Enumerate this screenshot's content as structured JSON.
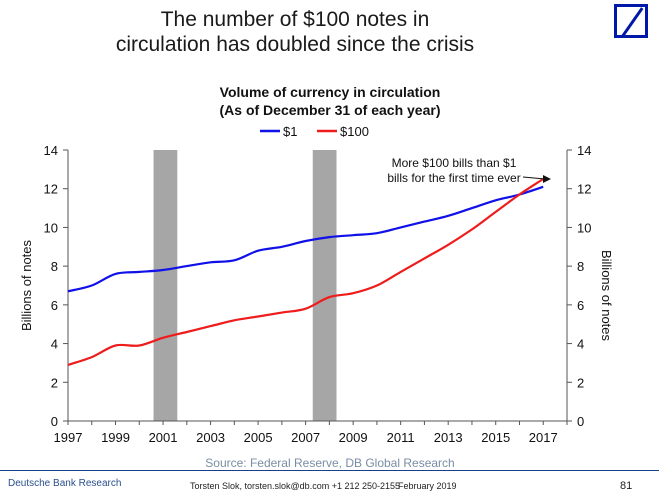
{
  "slide": {
    "headline_line1": "The number of $100 notes in",
    "headline_line2": "circulation has doubled since the crisis",
    "source": "Source: Federal Reserve, DB Global Research",
    "footer_left": "Deutsche Bank Research",
    "footer_contact": "Torsten Slok, torsten.slok@db.com +1 212 250-2155",
    "footer_date": "February 2019",
    "page_number": "81"
  },
  "chart_data": {
    "type": "line",
    "title": "Volume of currency in circulation",
    "subtitle": "(As of December 31 of each year)",
    "ylabel_left": "Billions of notes",
    "ylabel_right": "Billions of notes",
    "ylim": [
      0,
      14
    ],
    "yticks": [
      0,
      2,
      4,
      6,
      8,
      10,
      12,
      14
    ],
    "xlim": [
      1997,
      2018
    ],
    "xticks": [
      1997,
      1999,
      2001,
      2003,
      2005,
      2007,
      2009,
      2011,
      2013,
      2015,
      2017
    ],
    "recessions": [
      [
        2000.6,
        2001.6
      ],
      [
        2007.3,
        2008.3
      ]
    ],
    "annotation_line1": "More $100 bills than $1",
    "annotation_line2": "bills for the first time ever",
    "series": [
      {
        "name": "$1",
        "color": "#1010e8",
        "x": [
          1997,
          1998,
          1999,
          2000,
          2001,
          2002,
          2003,
          2004,
          2005,
          2006,
          2007,
          2008,
          2009,
          2010,
          2011,
          2012,
          2013,
          2014,
          2015,
          2016,
          2017
        ],
        "values": [
          6.7,
          7.0,
          7.6,
          7.7,
          7.8,
          8.0,
          8.2,
          8.3,
          8.8,
          9.0,
          9.3,
          9.5,
          9.6,
          9.7,
          10.0,
          10.3,
          10.6,
          11.0,
          11.4,
          11.7,
          12.1
        ]
      },
      {
        "name": "$100",
        "color": "#ee1c1c",
        "x": [
          1997,
          1998,
          1999,
          2000,
          2001,
          2002,
          2003,
          2004,
          2005,
          2006,
          2007,
          2008,
          2009,
          2010,
          2011,
          2012,
          2013,
          2014,
          2015,
          2016,
          2017
        ],
        "values": [
          2.9,
          3.3,
          3.9,
          3.9,
          4.3,
          4.6,
          4.9,
          5.2,
          5.4,
          5.6,
          5.8,
          6.4,
          6.6,
          7.0,
          7.7,
          8.4,
          9.1,
          9.9,
          10.8,
          11.7,
          12.5
        ]
      }
    ]
  }
}
